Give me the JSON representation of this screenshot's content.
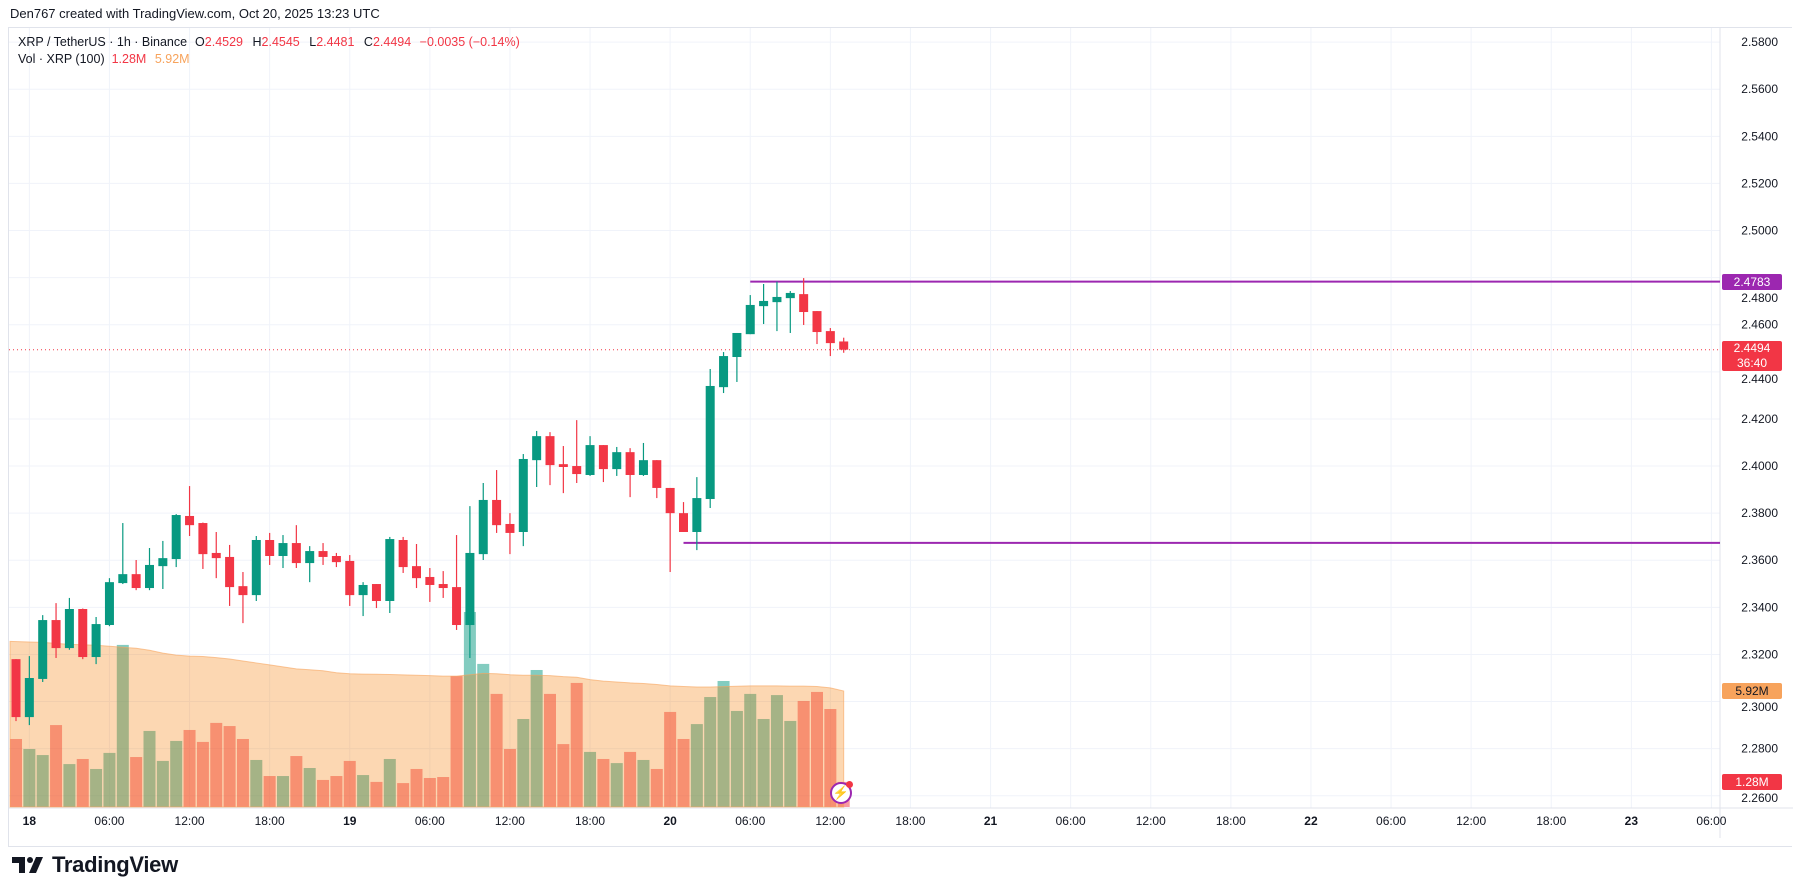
{
  "credit": "Den767 created with TradingView.com, Oct 20, 2025 13:23 UTC",
  "legend": {
    "symbol": "XRP / TetherUS · 1h · Binance",
    "open_label": "O",
    "open": "2.4529",
    "high_label": "H",
    "high": "2.4545",
    "low_label": "L",
    "low": "2.4481",
    "close_label": "C",
    "close": "2.4494",
    "change": "−0.0035 (−0.14%)",
    "volume_title": "Vol · XRP (100)",
    "volume_value": "1.28M",
    "volume_ma": "5.92M"
  },
  "badges": {
    "resistance": "2.4783",
    "last_price": "2.4494",
    "countdown": "36:40",
    "volume_ma": "5.92M",
    "volume": "1.28M"
  },
  "logo": "TradingView",
  "colors": {
    "up": "#089981",
    "down": "#f23645",
    "level": "#9c27b0",
    "volume_ma": "#f7a35c"
  },
  "chart_data": {
    "type": "candlestick",
    "symbol": "XRP / TetherUS",
    "interval": "1h",
    "exchange": "Binance",
    "ylim": [
      2.2548,
      2.586
    ],
    "grid": true,
    "price_ticks": [
      "2.5800",
      "2.5600",
      "2.5400",
      "2.5200",
      "2.5000",
      "2.4800",
      "2.4600",
      "2.4400",
      "2.4200",
      "2.4000",
      "2.3800",
      "2.3600",
      "2.3400",
      "2.3200",
      "2.3000",
      "2.2800",
      "2.2600"
    ],
    "time_ticks": [
      {
        "label": "18",
        "time": "2025-10-18T00:00"
      },
      {
        "label": "06:00",
        "time": "2025-10-18T06:00"
      },
      {
        "label": "12:00",
        "time": "2025-10-18T12:00"
      },
      {
        "label": "18:00",
        "time": "2025-10-18T18:00"
      },
      {
        "label": "19",
        "time": "2025-10-19T00:00"
      },
      {
        "label": "06:00",
        "time": "2025-10-19T06:00"
      },
      {
        "label": "12:00",
        "time": "2025-10-19T12:00"
      },
      {
        "label": "18:00",
        "time": "2025-10-19T18:00"
      },
      {
        "label": "20",
        "time": "2025-10-20T00:00"
      },
      {
        "label": "06:00",
        "time": "2025-10-20T06:00"
      },
      {
        "label": "12:00",
        "time": "2025-10-20T12:00"
      },
      {
        "label": "18:00",
        "time": "2025-10-20T18:00"
      },
      {
        "label": "21",
        "time": "2025-10-21T00:00"
      },
      {
        "label": "06:00",
        "time": "2025-10-21T06:00"
      },
      {
        "label": "12:00",
        "time": "2025-10-21T12:00"
      },
      {
        "label": "18:00",
        "time": "2025-10-21T18:00"
      },
      {
        "label": "22",
        "time": "2025-10-22T00:00"
      },
      {
        "label": "06:00",
        "time": "2025-10-22T06:00"
      },
      {
        "label": "12:00",
        "time": "2025-10-22T12:00"
      },
      {
        "label": "18:00",
        "time": "2025-10-22T18:00"
      },
      {
        "label": "23",
        "time": "2025-10-23T00:00"
      },
      {
        "label": "06:00",
        "time": "2025-10-23T06:00"
      }
    ],
    "levels": [
      {
        "price": 2.4783,
        "from": "2025-10-20T06:00"
      },
      {
        "price": 2.3674,
        "from": "2025-10-20T01:00"
      }
    ],
    "last_price": 2.4494,
    "candles_columns": [
      "time",
      "open",
      "high",
      "low",
      "close",
      "volume_M",
      "volume_ma_M"
    ],
    "candles": [
      [
        "2025-10-17T23:00",
        2.318,
        2.318,
        2.2917,
        2.2934,
        3.47,
        8.45
      ],
      [
        "2025-10-18T00:00",
        2.2934,
        2.3193,
        2.29,
        2.31,
        2.96,
        8.42
      ],
      [
        "2025-10-18T01:00",
        2.3096,
        2.3367,
        2.3083,
        2.3346,
        2.65,
        8.4
      ],
      [
        "2025-10-18T02:00",
        2.3346,
        2.3418,
        2.3185,
        2.3227,
        4.18,
        8.35
      ],
      [
        "2025-10-18T03:00",
        2.3227,
        2.344,
        2.322,
        2.3393,
        2.19,
        8.3
      ],
      [
        "2025-10-18T04:00",
        2.3393,
        2.3395,
        2.318,
        2.3189,
        2.45,
        8.28
      ],
      [
        "2025-10-18T05:00",
        2.3189,
        2.3359,
        2.3159,
        2.3329,
        1.94,
        8.25
      ],
      [
        "2025-10-18T06:00",
        2.3325,
        2.3524,
        2.332,
        2.3507,
        2.76,
        8.2
      ],
      [
        "2025-10-18T07:00",
        2.3503,
        2.3758,
        2.3499,
        2.3541,
        8.27,
        8.15
      ],
      [
        "2025-10-18T08:00",
        2.3541,
        2.3601,
        2.3473,
        2.3482,
        2.55,
        8.1
      ],
      [
        "2025-10-18T09:00",
        2.3482,
        2.3652,
        2.3473,
        2.358,
        3.88,
        8.0
      ],
      [
        "2025-10-18T10:00",
        2.3575,
        2.3682,
        2.3478,
        2.3609,
        2.35,
        7.85
      ],
      [
        "2025-10-18T11:00",
        2.3605,
        2.3796,
        2.3571,
        2.3792,
        3.37,
        7.75
      ],
      [
        "2025-10-18T12:00",
        2.3788,
        2.3915,
        2.3703,
        2.3749,
        3.93,
        7.7
      ],
      [
        "2025-10-18T13:00",
        2.3758,
        2.376,
        2.3563,
        2.3626,
        3.32,
        7.68
      ],
      [
        "2025-10-18T14:00",
        2.3631,
        2.372,
        2.3524,
        2.3609,
        4.29,
        7.62
      ],
      [
        "2025-10-18T15:00",
        2.3614,
        2.3665,
        2.3406,
        2.3486,
        4.13,
        7.55
      ],
      [
        "2025-10-18T16:00",
        2.349,
        2.355,
        2.3333,
        2.3452,
        3.47,
        7.45
      ],
      [
        "2025-10-18T17:00",
        2.3452,
        2.3703,
        2.3427,
        2.3686,
        2.4,
        7.35
      ],
      [
        "2025-10-18T18:00",
        2.3686,
        2.3716,
        2.358,
        2.3618,
        1.58,
        7.25
      ],
      [
        "2025-10-18T19:00",
        2.3618,
        2.3707,
        2.3567,
        2.3673,
        1.58,
        7.15
      ],
      [
        "2025-10-18T20:00",
        2.3673,
        2.3749,
        2.3567,
        2.3588,
        2.6,
        7.05
      ],
      [
        "2025-10-18T21:00",
        2.3588,
        2.366,
        2.3507,
        2.3639,
        1.99,
        7.0
      ],
      [
        "2025-10-18T22:00",
        2.3639,
        2.3673,
        2.358,
        2.3614,
        1.38,
        6.95
      ],
      [
        "2025-10-18T23:00",
        2.3618,
        2.3631,
        2.3571,
        2.3592,
        1.58,
        6.85
      ],
      [
        "2025-10-19T00:00",
        2.3597,
        2.3622,
        2.3406,
        2.3452,
        2.35,
        6.8
      ],
      [
        "2025-10-19T01:00",
        2.3452,
        2.3507,
        2.3363,
        2.3495,
        1.63,
        6.78
      ],
      [
        "2025-10-19T02:00",
        2.3499,
        2.3499,
        2.3397,
        2.3427,
        1.28,
        6.77
      ],
      [
        "2025-10-19T03:00",
        2.3427,
        2.3699,
        2.3376,
        2.369,
        2.45,
        6.76
      ],
      [
        "2025-10-19T04:00",
        2.3686,
        2.3699,
        2.3546,
        2.3571,
        1.22,
        6.74
      ],
      [
        "2025-10-19T05:00",
        2.3575,
        2.3669,
        2.3482,
        2.3524,
        1.94,
        6.72
      ],
      [
        "2025-10-19T06:00",
        2.3529,
        2.3567,
        2.3423,
        2.3495,
        1.48,
        6.7
      ],
      [
        "2025-10-19T07:00",
        2.3499,
        2.3554,
        2.344,
        2.3482,
        1.53,
        6.68
      ],
      [
        "2025-10-19T08:00",
        2.3486,
        2.3707,
        2.3304,
        2.3325,
        6.68,
        6.68
      ],
      [
        "2025-10-19T09:00",
        2.3325,
        2.383,
        2.3185,
        2.3631,
        9.95,
        6.75
      ],
      [
        "2025-10-19T10:00",
        2.3626,
        2.3928,
        2.3601,
        2.3856,
        7.3,
        6.82
      ],
      [
        "2025-10-19T11:00",
        2.3856,
        2.3983,
        2.3716,
        2.3749,
        5.77,
        6.8
      ],
      [
        "2025-10-19T12:00",
        2.3754,
        2.38,
        2.3626,
        2.3716,
        2.96,
        6.75
      ],
      [
        "2025-10-19T13:00",
        2.372,
        2.4051,
        2.366,
        2.403,
        4.49,
        6.72
      ],
      [
        "2025-10-19T14:00",
        2.4025,
        2.4149,
        2.3911,
        2.4127,
        6.99,
        6.72
      ],
      [
        "2025-10-19T15:00",
        2.4127,
        2.4144,
        2.3919,
        2.4004,
        5.77,
        6.7
      ],
      [
        "2025-10-19T16:00",
        2.4008,
        2.4085,
        2.3885,
        2.3996,
        3.21,
        6.65
      ],
      [
        "2025-10-19T17:00",
        2.4,
        2.4195,
        2.3928,
        2.3966,
        6.33,
        6.62
      ],
      [
        "2025-10-19T18:00",
        2.3962,
        2.4127,
        2.3958,
        2.4089,
        2.81,
        6.5
      ],
      [
        "2025-10-19T19:00",
        2.4089,
        2.4089,
        2.3932,
        2.3987,
        2.45,
        6.42
      ],
      [
        "2025-10-19T20:00",
        2.3987,
        2.4081,
        2.3958,
        2.4059,
        2.24,
        6.38
      ],
      [
        "2025-10-19T21:00",
        2.4059,
        2.4076,
        2.3868,
        2.3962,
        2.81,
        6.33
      ],
      [
        "2025-10-19T22:00",
        2.3962,
        2.4098,
        2.3958,
        2.4025,
        2.4,
        6.3
      ],
      [
        "2025-10-19T23:00",
        2.4025,
        2.4025,
        2.3864,
        2.3907,
        1.94,
        6.25
      ],
      [
        "2025-10-20T00:00",
        2.3907,
        2.3907,
        2.355,
        2.38,
        4.85,
        6.18
      ],
      [
        "2025-10-20T01:00",
        2.38,
        2.3847,
        2.372,
        2.372,
        3.47,
        6.15
      ],
      [
        "2025-10-20T02:00",
        2.372,
        2.3953,
        2.3643,
        2.3864,
        4.23,
        6.12
      ],
      [
        "2025-10-20T03:00",
        2.386,
        2.4412,
        2.3822,
        2.434,
        5.61,
        6.12
      ],
      [
        "2025-10-20T04:00",
        2.4335,
        2.4484,
        2.431,
        2.4467,
        6.43,
        6.14
      ],
      [
        "2025-10-20T05:00",
        2.4463,
        2.4565,
        2.4357,
        2.4565,
        4.9,
        6.16
      ],
      [
        "2025-10-20T06:00",
        2.456,
        2.4726,
        2.456,
        2.4684,
        5.77,
        6.18
      ],
      [
        "2025-10-20T07:00",
        2.4679,
        2.4773,
        2.4603,
        2.4701,
        4.49,
        6.18
      ],
      [
        "2025-10-20T08:00",
        2.4696,
        2.4783,
        2.4573,
        2.4718,
        5.71,
        6.18
      ],
      [
        "2025-10-20T09:00",
        2.4713,
        2.4743,
        2.4565,
        2.4735,
        4.39,
        6.17
      ],
      [
        "2025-10-20T10:00",
        2.473,
        2.4798,
        2.4599,
        2.4654,
        5.41,
        6.17
      ],
      [
        "2025-10-20T11:00",
        2.4658,
        2.4658,
        2.4518,
        2.4569,
        5.87,
        6.15
      ],
      [
        "2025-10-20T12:00",
        2.4573,
        2.4586,
        2.4467,
        2.4522,
        5.0,
        6.08
      ],
      [
        "2025-10-20T13:00",
        2.4529,
        2.4545,
        2.4481,
        2.4494,
        1.28,
        5.92
      ]
    ]
  }
}
